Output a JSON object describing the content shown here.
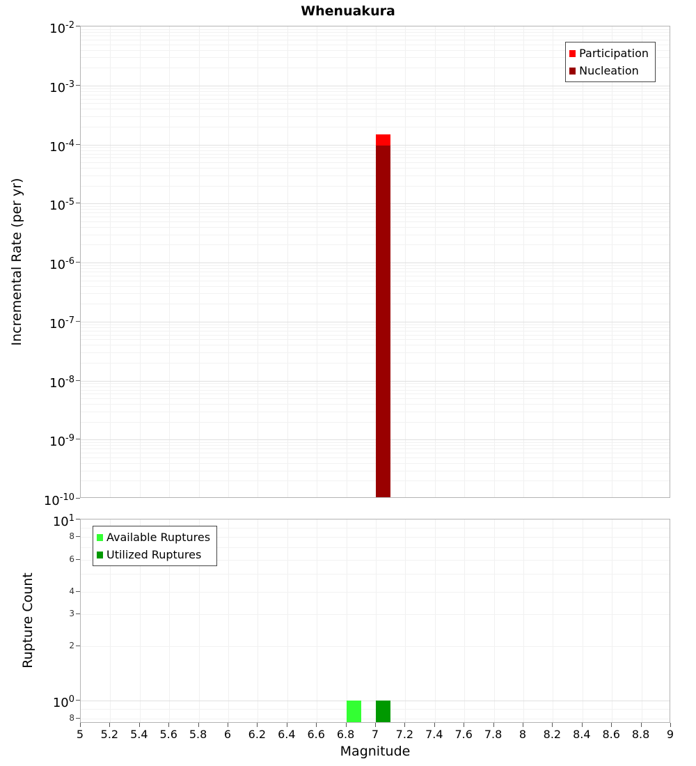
{
  "title": "Whenuakura",
  "chart_data": [
    {
      "type": "bar",
      "title": "Whenuakura",
      "ylabel": "Incremental Rate (per yr)",
      "yscale": "log",
      "ylim": [
        1e-10,
        0.01
      ],
      "xlim": [
        5,
        9
      ],
      "grid": true,
      "legend_position": "top-right",
      "y_ticks": [
        {
          "value": 0.01,
          "exp": "-2"
        },
        {
          "value": 0.001,
          "exp": "-3"
        },
        {
          "value": 0.0001,
          "exp": "-4"
        },
        {
          "value": 1e-05,
          "exp": "-5"
        },
        {
          "value": 1e-06,
          "exp": "-6"
        },
        {
          "value": 1e-07,
          "exp": "-7"
        },
        {
          "value": 1e-08,
          "exp": "-8"
        },
        {
          "value": 1e-09,
          "exp": "-9"
        },
        {
          "value": 1e-10,
          "exp": "-10"
        }
      ],
      "x_ticks": [
        5,
        5.2,
        5.4,
        5.6,
        5.8,
        6,
        6.2,
        6.4,
        6.6,
        6.8,
        7,
        7.2,
        7.4,
        7.6,
        7.8,
        8,
        8.2,
        8.4,
        8.6,
        8.8,
        9
      ],
      "series": [
        {
          "name": "Participation",
          "color": "#ff0000",
          "bar_width": 0.1,
          "bars": [
            {
              "x": 7.05,
              "value": 0.00015
            }
          ]
        },
        {
          "name": "Nucleation",
          "color": "#990000",
          "bar_width": 0.1,
          "bars": [
            {
              "x": 7.05,
              "value": 9.5e-05
            }
          ]
        }
      ]
    },
    {
      "type": "bar",
      "ylabel": "Rupture Count",
      "xlabel": "Magnitude",
      "yscale": "log",
      "ylim": [
        0.75,
        10
      ],
      "xlim": [
        5,
        9
      ],
      "grid": true,
      "legend_position": "top-left",
      "y_ticks": [
        {
          "value": 10,
          "exp": "1"
        },
        {
          "value": 8,
          "label": "8",
          "minor": true
        },
        {
          "value": 6,
          "label": "6",
          "minor": true
        },
        {
          "value": 4,
          "label": "4",
          "minor": true
        },
        {
          "value": 3,
          "label": "3",
          "minor": true
        },
        {
          "value": 2,
          "label": "2",
          "minor": true
        },
        {
          "value": 1,
          "exp": "0"
        },
        {
          "value": 0.8,
          "label": "8",
          "minor": true
        }
      ],
      "x_ticks": [
        5,
        5.2,
        5.4,
        5.6,
        5.8,
        6,
        6.2,
        6.4,
        6.6,
        6.8,
        7,
        7.2,
        7.4,
        7.6,
        7.8,
        8,
        8.2,
        8.4,
        8.6,
        8.8,
        9
      ],
      "x_tick_labels": [
        "5",
        "5.2",
        "5.4",
        "5.6",
        "5.8",
        "6",
        "6.2",
        "6.4",
        "6.6",
        "6.8",
        "7",
        "7.2",
        "7.4",
        "7.6",
        "7.8",
        "8",
        "8.2",
        "8.4",
        "8.6",
        "8.8",
        "9"
      ],
      "series": [
        {
          "name": "Available Ruptures",
          "color": "#33ff33",
          "bar_width": 0.1,
          "bars": [
            {
              "x": 6.85,
              "value": 1
            }
          ]
        },
        {
          "name": "Utilized Ruptures",
          "color": "#009900",
          "bar_width": 0.1,
          "bars": [
            {
              "x": 7.05,
              "value": 1
            }
          ]
        }
      ]
    }
  ]
}
